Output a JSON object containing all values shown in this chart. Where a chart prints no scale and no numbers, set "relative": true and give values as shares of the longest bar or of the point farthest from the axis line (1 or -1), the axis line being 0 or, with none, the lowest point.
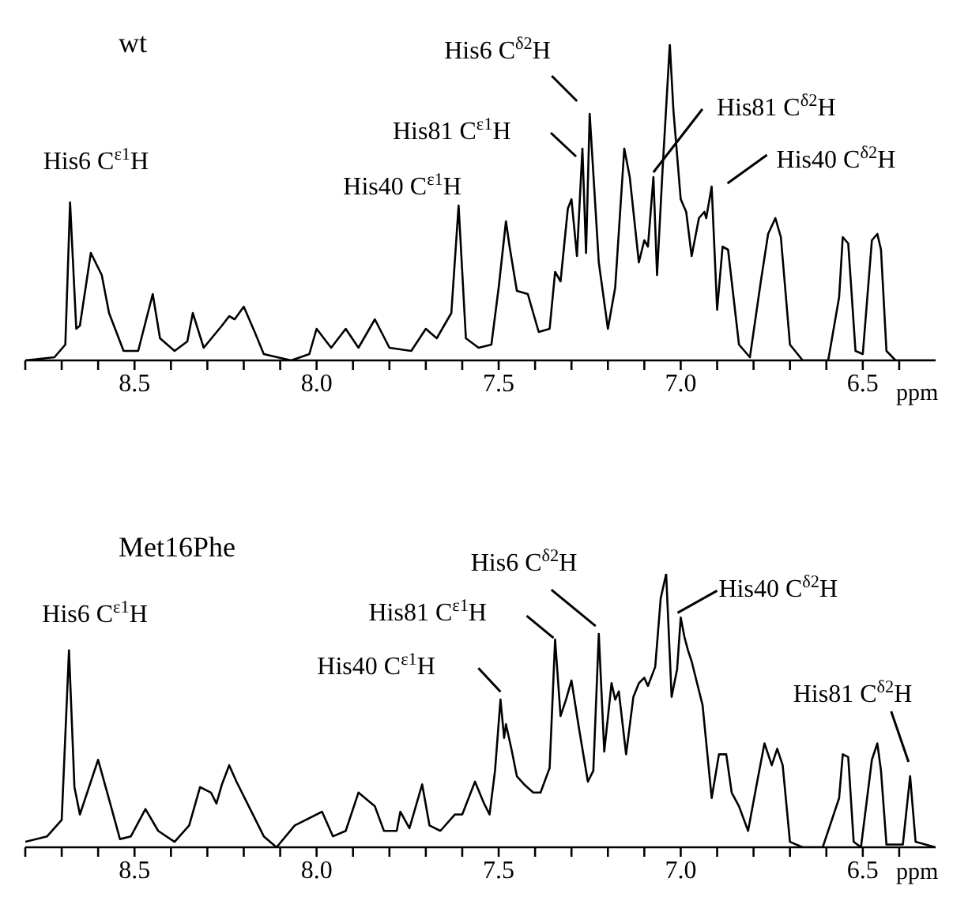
{
  "chart_data": [
    {
      "type": "line",
      "title": "wt",
      "xlabel": "ppm",
      "relative": true,
      "xlim": [
        8.8,
        6.3
      ],
      "xticks": [
        {
          "value": 8.8,
          "label": null
        },
        {
          "value": 8.7,
          "label": null
        },
        {
          "value": 8.6,
          "label": null
        },
        8.5,
        {
          "value": 8.4,
          "label": null
        },
        {
          "value": 8.3,
          "label": null
        },
        {
          "value": 8.2,
          "label": null
        },
        {
          "value": 8.1,
          "label": null
        },
        {
          "value": 8.0,
          "label": "8.0"
        },
        {
          "value": 7.9,
          "label": null
        },
        {
          "value": 7.8,
          "label": null
        },
        {
          "value": 7.7,
          "label": null
        },
        {
          "value": 7.6,
          "label": null
        },
        7.5,
        {
          "value": 7.4,
          "label": null
        },
        {
          "value": 7.3,
          "label": null
        },
        {
          "value": 7.2,
          "label": null
        },
        {
          "value": 7.1,
          "label": null
        },
        {
          "value": 7.0,
          "label": "7.0"
        },
        {
          "value": 6.9,
          "label": null
        },
        {
          "value": 6.8,
          "label": null
        },
        {
          "value": 6.7,
          "label": null
        },
        {
          "value": 6.6,
          "label": null
        },
        6.5,
        {
          "value": 6.4,
          "label": null
        }
      ],
      "x": [
        8.8,
        8.72,
        8.69,
        8.677,
        8.66,
        8.65,
        8.62,
        8.59,
        8.57,
        8.53,
        8.49,
        8.45,
        8.43,
        8.39,
        8.355,
        8.34,
        8.31,
        8.26,
        8.24,
        8.225,
        8.2,
        8.17,
        8.145,
        8.07,
        8.02,
        8.0,
        7.96,
        7.92,
        7.885,
        7.84,
        7.8,
        7.74,
        7.7,
        7.67,
        7.63,
        7.61,
        7.59,
        7.555,
        7.52,
        7.5,
        7.48,
        7.47,
        7.45,
        7.42,
        7.39,
        7.36,
        7.345,
        7.33,
        7.31,
        7.3,
        7.285,
        7.27,
        7.26,
        7.25,
        7.225,
        7.2,
        7.18,
        7.155,
        7.14,
        7.115,
        7.1,
        7.09,
        7.075,
        7.065,
        7.05,
        7.03,
        7.02,
        7.0,
        6.985,
        6.97,
        6.95,
        6.935,
        6.93,
        6.915,
        6.9,
        6.885,
        6.87,
        6.84,
        6.81,
        6.78,
        6.76,
        6.74,
        6.725,
        6.7,
        6.665,
        6.595,
        6.565,
        6.555,
        6.54,
        6.52,
        6.5,
        6.475,
        6.46,
        6.45,
        6.435,
        6.41,
        6.3
      ],
      "series": [
        {
          "color": "#000000",
          "values": [
            0,
            0.01,
            0.05,
            0.5,
            0.1,
            0.11,
            0.34,
            0.27,
            0.15,
            0.03,
            0.03,
            0.21,
            0.07,
            0.03,
            0.06,
            0.15,
            0.04,
            0.11,
            0.14,
            0.13,
            0.17,
            0.09,
            0.02,
            0,
            0.02,
            0.1,
            0.04,
            0.1,
            0.04,
            0.13,
            0.04,
            0.03,
            0.1,
            0.07,
            0.15,
            0.49,
            0.07,
            0.04,
            0.05,
            0.23,
            0.44,
            0.36,
            0.22,
            0.21,
            0.09,
            0.1,
            0.28,
            0.25,
            0.48,
            0.51,
            0.33,
            0.67,
            0.34,
            0.78,
            0.31,
            0.1,
            0.23,
            0.67,
            0.58,
            0.31,
            0.38,
            0.36,
            0.58,
            0.27,
            0.6,
            1.0,
            0.79,
            0.51,
            0.47,
            0.33,
            0.45,
            0.47,
            0.45,
            0.55,
            0.16,
            0.36,
            0.35,
            0.05,
            0.01,
            0.25,
            0.4,
            0.45,
            0.39,
            0.05,
            0,
            0,
            0.2,
            0.39,
            0.37,
            0.03,
            0.02,
            0.38,
            0.4,
            0.35,
            0.03,
            0,
            0
          ]
        }
      ],
      "annotations": [
        {
          "text": "His6 C$^{ε1}$H",
          "x": 8.677,
          "y": 0.5
        },
        {
          "text": "His40 C$^{ε1}$H",
          "x": 7.61,
          "y": 0.49
        },
        {
          "text": "His81 C$^{ε1}$H",
          "x": 7.27,
          "y": 0.67
        },
        {
          "text": "His6 C$^{δ2}$H",
          "x": 7.25,
          "y": 0.78
        },
        {
          "text": "His81 C$^{δ2}$H",
          "x": 7.075,
          "y": 0.58
        },
        {
          "text": "His40 C$^{δ2}$H",
          "x": 6.915,
          "y": 0.55
        }
      ]
    },
    {
      "type": "line",
      "title": "Met16Phe",
      "xlabel": "ppm",
      "relative": true,
      "xlim": [
        8.8,
        6.3
      ],
      "xticks": [
        {
          "value": 8.8,
          "label": null
        },
        {
          "value": 8.7,
          "label": null
        },
        {
          "value": 8.6,
          "label": null
        },
        8.5,
        {
          "value": 8.4,
          "label": null
        },
        {
          "value": 8.3,
          "label": null
        },
        {
          "value": 8.2,
          "label": null
        },
        {
          "value": 8.1,
          "label": null
        },
        {
          "value": 8.0,
          "label": "8.0"
        },
        {
          "value": 7.9,
          "label": null
        },
        {
          "value": 7.8,
          "label": null
        },
        {
          "value": 7.7,
          "label": null
        },
        {
          "value": 7.6,
          "label": null
        },
        7.5,
        {
          "value": 7.4,
          "label": null
        },
        {
          "value": 7.3,
          "label": null
        },
        {
          "value": 7.2,
          "label": null
        },
        {
          "value": 7.1,
          "label": null
        },
        {
          "value": 7.0,
          "label": "7.0"
        },
        {
          "value": 6.9,
          "label": null
        },
        {
          "value": 6.8,
          "label": null
        },
        {
          "value": 6.7,
          "label": null
        },
        {
          "value": 6.6,
          "label": null
        },
        6.5,
        {
          "value": 6.4,
          "label": null
        }
      ],
      "x": [
        8.8,
        8.74,
        8.7,
        8.68,
        8.665,
        8.65,
        8.6,
        8.575,
        8.54,
        8.51,
        8.47,
        8.435,
        8.39,
        8.35,
        8.32,
        8.29,
        8.275,
        8.26,
        8.24,
        8.22,
        8.19,
        8.145,
        8.11,
        8.06,
        7.985,
        7.955,
        7.92,
        7.885,
        7.84,
        7.815,
        7.78,
        7.77,
        7.745,
        7.71,
        7.69,
        7.66,
        7.62,
        7.6,
        7.565,
        7.54,
        7.525,
        7.51,
        7.495,
        7.485,
        7.48,
        7.465,
        7.45,
        7.43,
        7.405,
        7.385,
        7.36,
        7.345,
        7.33,
        7.315,
        7.3,
        7.28,
        7.255,
        7.24,
        7.225,
        7.21,
        7.19,
        7.18,
        7.17,
        7.15,
        7.13,
        7.115,
        7.1,
        7.09,
        7.07,
        7.055,
        7.04,
        7.025,
        7.01,
        7.0,
        6.99,
        6.98,
        6.97,
        6.94,
        6.915,
        6.895,
        6.875,
        6.86,
        6.84,
        6.815,
        6.79,
        6.77,
        6.75,
        6.735,
        6.72,
        6.7,
        6.665,
        6.61,
        6.565,
        6.555,
        6.54,
        6.525,
        6.505,
        6.475,
        6.46,
        6.45,
        6.435,
        6.39,
        6.37,
        6.355,
        6.3
      ],
      "series": [
        {
          "color": "#000000",
          "values": [
            0.02,
            0.04,
            0.1,
            0.72,
            0.22,
            0.12,
            0.32,
            0.2,
            0.03,
            0.04,
            0.14,
            0.06,
            0.02,
            0.08,
            0.22,
            0.2,
            0.16,
            0.23,
            0.3,
            0.24,
            0.16,
            0.04,
            0,
            0.08,
            0.13,
            0.04,
            0.06,
            0.2,
            0.15,
            0.06,
            0.06,
            0.13,
            0.07,
            0.23,
            0.08,
            0.06,
            0.12,
            0.12,
            0.24,
            0.16,
            0.12,
            0.28,
            0.54,
            0.4,
            0.45,
            0.36,
            0.26,
            0.23,
            0.2,
            0.2,
            0.29,
            0.76,
            0.48,
            0.54,
            0.61,
            0.44,
            0.24,
            0.28,
            0.78,
            0.35,
            0.6,
            0.54,
            0.57,
            0.34,
            0.55,
            0.6,
            0.62,
            0.59,
            0.66,
            0.91,
            1.0,
            0.55,
            0.65,
            0.84,
            0.77,
            0.72,
            0.68,
            0.52,
            0.18,
            0.34,
            0.34,
            0.2,
            0.15,
            0.06,
            0.24,
            0.38,
            0.3,
            0.36,
            0.3,
            0.02,
            0,
            0,
            0.18,
            0.34,
            0.33,
            0.02,
            0,
            0.32,
            0.38,
            0.28,
            0.01,
            0.01,
            0.26,
            0.02,
            0
          ]
        }
      ],
      "annotations": [
        {
          "text": "His6 C$^{ε1}$H",
          "x": 8.68,
          "y": 0.72
        },
        {
          "text": "His40 C$^{ε1}$H",
          "x": 7.495,
          "y": 0.54
        },
        {
          "text": "His81 C$^{ε1}$H",
          "x": 7.345,
          "y": 0.76
        },
        {
          "text": "His6 C$^{δ2}$H",
          "x": 7.225,
          "y": 0.78
        },
        {
          "text": "His40 C$^{δ2}$H",
          "x": 7.0,
          "y": 0.84
        },
        {
          "text": "His81 C$^{δ2}$H",
          "x": 6.37,
          "y": 0.26
        }
      ]
    }
  ]
}
